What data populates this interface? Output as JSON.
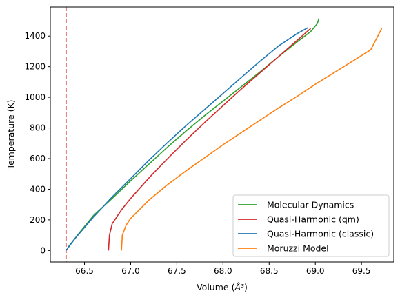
{
  "chart_data": {
    "type": "line",
    "title": "",
    "xlabel": "Volume",
    "xlabel_unit": "Å³",
    "ylabel": "Temperature (K)",
    "xlim": [
      66.13,
      69.85
    ],
    "ylim": [
      -75,
      1590
    ],
    "x_ticks": [
      66.5,
      67.0,
      67.5,
      68.0,
      68.5,
      69.0,
      69.5
    ],
    "x_tick_labels": [
      "66.5",
      "67.0",
      "67.5",
      "68.0",
      "68.5",
      "69.0",
      "69.5"
    ],
    "y_ticks": [
      0,
      200,
      400,
      600,
      800,
      1000,
      1200,
      1400
    ],
    "y_tick_labels": [
      "0",
      "200",
      "400",
      "600",
      "800",
      "1000",
      "1200",
      "1400"
    ],
    "grid": false,
    "legend_position": "lower-right",
    "reference_line": {
      "orientation": "vertical",
      "x": 66.3,
      "style": "dashed",
      "color": "#d62728"
    },
    "series": [
      {
        "name": "Molecular Dynamics",
        "color": "#2ca02c",
        "x": [
          66.32,
          66.45,
          66.6,
          66.8,
          67.0,
          67.2,
          67.4,
          67.6,
          67.8,
          68.0,
          68.2,
          68.4,
          68.6,
          68.8,
          68.95,
          69.02,
          69.04
        ],
        "y": [
          20,
          120,
          230,
          340,
          455,
          565,
          675,
          780,
          880,
          975,
          1070,
          1165,
          1265,
          1360,
          1430,
          1480,
          1515
        ]
      },
      {
        "name": "Quasi-Harmonic (qm)",
        "color": "#d62728",
        "x": [
          66.76,
          66.77,
          66.8,
          66.9,
          67.0,
          67.2,
          67.4,
          67.6,
          67.8,
          68.0,
          68.2,
          68.4,
          68.6,
          68.8,
          68.95
        ],
        "y": [
          0,
          100,
          175,
          265,
          340,
          475,
          600,
          720,
          835,
          945,
          1055,
          1160,
          1265,
          1370,
          1450
        ]
      },
      {
        "name": "Quasi-Harmonic (classic)",
        "color": "#1f77b4",
        "x": [
          66.3,
          66.4,
          66.6,
          66.8,
          67.0,
          67.2,
          67.4,
          67.6,
          67.8,
          68.0,
          68.2,
          68.4,
          68.6,
          68.8,
          68.92
        ],
        "y": [
          0,
          80,
          220,
          350,
          470,
          590,
          705,
          815,
          920,
          1025,
          1130,
          1235,
          1335,
          1415,
          1455
        ]
      },
      {
        "name": "Moruzzi Model",
        "color": "#ff7f0e",
        "x": [
          66.9,
          66.91,
          66.95,
          67.0,
          67.2,
          67.4,
          67.6,
          67.8,
          68.0,
          68.2,
          68.4,
          68.6,
          68.8,
          69.0,
          69.2,
          69.4,
          69.6,
          69.72
        ],
        "y": [
          0,
          100,
          165,
          210,
          330,
          430,
          520,
          605,
          690,
          770,
          850,
          930,
          1005,
          1085,
          1160,
          1235,
          1310,
          1450
        ]
      }
    ]
  }
}
